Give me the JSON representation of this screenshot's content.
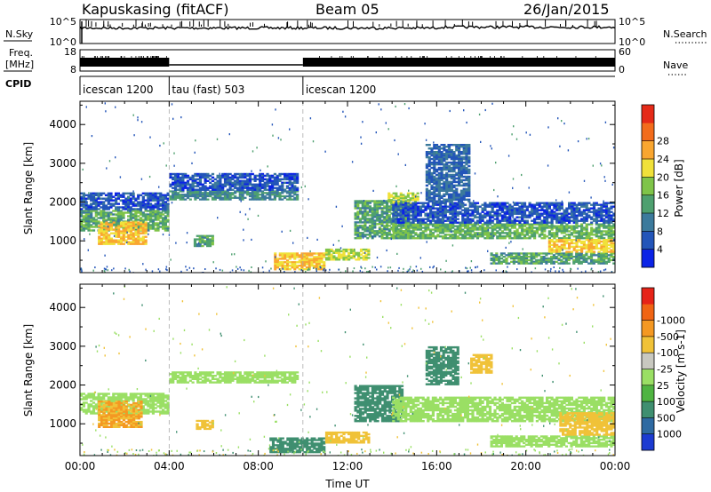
{
  "header": {
    "station": "Kapuskasing (fitACF)",
    "beam": "Beam 05",
    "date": "26/Jan/2015"
  },
  "noise_panel": {
    "left_label": "N.Sky",
    "left_ticks": [
      "10^5",
      "10^0"
    ],
    "right_ticks": [
      "10^5",
      "10^0"
    ],
    "right_label": "N.Search"
  },
  "freq_panel": {
    "left_label_1": "Freq.",
    "left_label_2": "[MHz]",
    "left_ticks": [
      "18",
      "8"
    ],
    "right_ticks": [
      "60",
      "0"
    ],
    "right_label": "Nave"
  },
  "cpid": {
    "label": "CPID",
    "segments": [
      {
        "name": "icescan 1200",
        "start": 0,
        "end": 4
      },
      {
        "name": "tau (fast) 503",
        "start": 4,
        "end": 10
      },
      {
        "name": "icescan 1200",
        "start": 10,
        "end": 24
      }
    ]
  },
  "chart_data": [
    {
      "type": "heatmap",
      "title": "",
      "ylabel": "Slant Range [km]",
      "xlabel": "",
      "xlim": [
        0,
        24
      ],
      "ylim": [
        180,
        4600
      ],
      "xticks": [
        "00:00",
        "04:00",
        "08:00",
        "12:00",
        "16:00",
        "20:00",
        "00:00"
      ],
      "yticks": [
        1000,
        2000,
        3000,
        4000
      ],
      "colorbar": {
        "label": "Power [dB]",
        "ticks": [
          "4",
          "8",
          "12",
          "16",
          "20",
          "24",
          "28"
        ],
        "colors": [
          "#0b23e6",
          "#2355b9",
          "#3c7a9c",
          "#4ea06f",
          "#7fc449",
          "#f0e13a",
          "#f9a630",
          "#f26c1c",
          "#e52a18"
        ]
      },
      "regions": [
        {
          "t0": 0.0,
          "t1": 4.0,
          "r0": 1250,
          "r1": 1800,
          "value": 15
        },
        {
          "t0": 0.8,
          "t1": 3.0,
          "r0": 900,
          "r1": 1500,
          "value": 24
        },
        {
          "t0": 0.0,
          "t1": 4.0,
          "r0": 1800,
          "r1": 2250,
          "value": 6
        },
        {
          "t0": 4.0,
          "t1": 9.8,
          "r0": 2050,
          "r1": 2300,
          "value": 12
        },
        {
          "t0": 4.0,
          "t1": 9.8,
          "r0": 2300,
          "r1": 2750,
          "value": 6
        },
        {
          "t0": 5.1,
          "t1": 6.0,
          "r0": 850,
          "r1": 1150,
          "value": 14
        },
        {
          "t0": 8.7,
          "t1": 11.0,
          "r0": 250,
          "r1": 700,
          "value": 24
        },
        {
          "t0": 11.0,
          "t1": 13.0,
          "r0": 500,
          "r1": 800,
          "value": 20
        },
        {
          "t0": 12.3,
          "t1": 14.8,
          "r0": 1050,
          "r1": 2050,
          "value": 14
        },
        {
          "t0": 13.8,
          "t1": 15.2,
          "r0": 1950,
          "r1": 2250,
          "value": 20
        },
        {
          "t0": 14.0,
          "t1": 24.0,
          "r0": 1050,
          "r1": 1450,
          "value": 16
        },
        {
          "t0": 14.0,
          "t1": 24.0,
          "r0": 1450,
          "r1": 2000,
          "value": 6
        },
        {
          "t0": 15.5,
          "t1": 17.5,
          "r0": 2000,
          "r1": 3500,
          "value": 8
        },
        {
          "t0": 18.4,
          "t1": 24.0,
          "r0": 400,
          "r1": 700,
          "value": 14
        },
        {
          "t0": 21.0,
          "t1": 24.0,
          "r0": 700,
          "r1": 1050,
          "value": 24
        }
      ]
    },
    {
      "type": "heatmap",
      "title": "",
      "ylabel": "Slant Range [km]",
      "xlabel": "Time UT",
      "xlim": [
        0,
        24
      ],
      "ylim": [
        180,
        4600
      ],
      "xticks": [
        "00:00",
        "04:00",
        "08:00",
        "12:00",
        "16:00",
        "20:00",
        "00:00"
      ],
      "yticks": [
        1000,
        2000,
        3000,
        4000
      ],
      "colorbar": {
        "label": "Velocity [m s-1]",
        "ticks": [
          "1000",
          "500",
          "100",
          "25",
          "-25",
          "-100",
          "-500",
          "-1000"
        ],
        "colors": [
          "#1c3bd1",
          "#2e6aa2",
          "#3f8f70",
          "#4fb441",
          "#9adf64",
          "#c8c8c0",
          "#f0c238",
          "#f49822",
          "#f06414",
          "#e62318"
        ]
      },
      "regions": [
        {
          "t0": 0.0,
          "t1": 4.0,
          "r0": 1250,
          "r1": 1800,
          "value": 0
        },
        {
          "t0": 0.8,
          "t1": 2.8,
          "r0": 900,
          "r1": 1600,
          "value": -500
        },
        {
          "t0": 4.0,
          "t1": 9.8,
          "r0": 2050,
          "r1": 2350,
          "value": 0
        },
        {
          "t0": 5.2,
          "t1": 6.0,
          "r0": 850,
          "r1": 1100,
          "value": -150
        },
        {
          "t0": 8.5,
          "t1": 11.0,
          "r0": 250,
          "r1": 650,
          "value": 200
        },
        {
          "t0": 11.0,
          "t1": 13.0,
          "r0": 500,
          "r1": 800,
          "value": -150
        },
        {
          "t0": 12.3,
          "t1": 14.5,
          "r0": 1050,
          "r1": 2000,
          "value": 150
        },
        {
          "t0": 14.0,
          "t1": 24.0,
          "r0": 1050,
          "r1": 1700,
          "value": 0
        },
        {
          "t0": 15.5,
          "t1": 17.0,
          "r0": 2000,
          "r1": 3000,
          "value": 400
        },
        {
          "t0": 17.5,
          "t1": 18.5,
          "r0": 2300,
          "r1": 2800,
          "value": -300
        },
        {
          "t0": 18.4,
          "t1": 24.0,
          "r0": 400,
          "r1": 700,
          "value": 0
        },
        {
          "t0": 21.5,
          "t1": 24.0,
          "r0": 700,
          "r1": 1300,
          "value": -400
        }
      ]
    }
  ]
}
